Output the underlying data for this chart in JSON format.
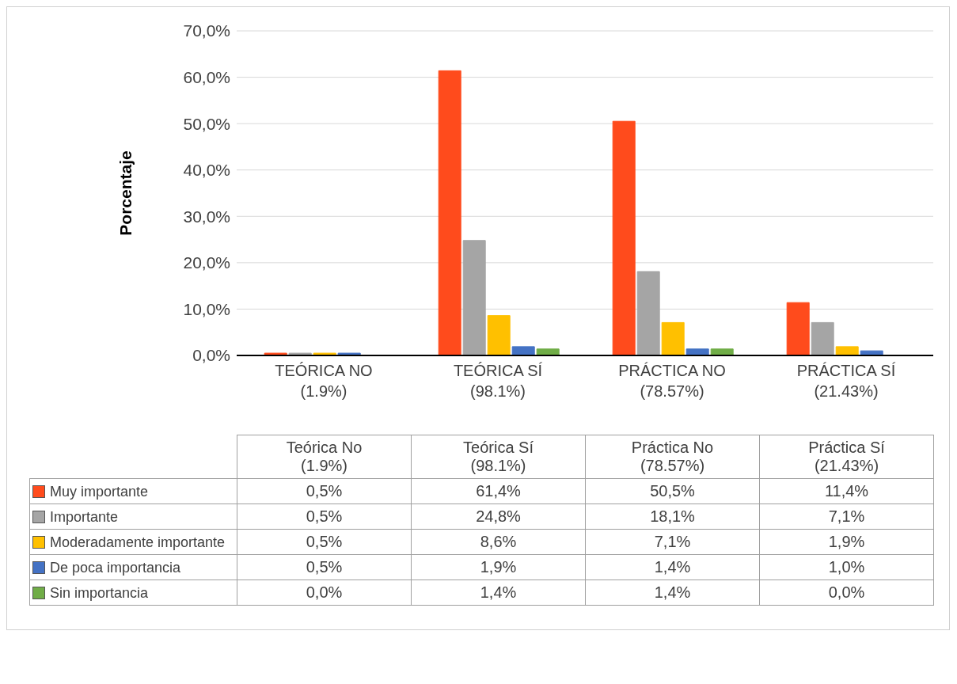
{
  "chart_data": {
    "type": "bar",
    "categories": [
      "TEÓRICA NO\n(1.9%)",
      "TEÓRICA SÍ\n(98.1%)",
      "PRÁCTICA NO\n(78.57%)",
      "PRÁCTICA SÍ\n(21.43%)"
    ],
    "series": [
      {
        "name": "Muy importante",
        "color": "#ff4b1c",
        "values": [
          0.5,
          61.4,
          50.5,
          11.4
        ],
        "value_labels": [
          "0,5%",
          "61,4%",
          "50,5%",
          "11,4%"
        ]
      },
      {
        "name": "Importante",
        "color": "#a5a5a5",
        "values": [
          0.5,
          24.8,
          18.1,
          7.1
        ],
        "value_labels": [
          "0,5%",
          "24,8%",
          "18,1%",
          "7,1%"
        ]
      },
      {
        "name": "Moderadamente importante",
        "color": "#ffc000",
        "values": [
          0.5,
          8.6,
          7.1,
          1.9
        ],
        "value_labels": [
          "0,5%",
          "8,6%",
          "7,1%",
          "1,9%"
        ]
      },
      {
        "name": "De poca importancia",
        "color": "#4472c4",
        "values": [
          0.5,
          1.9,
          1.4,
          1.0
        ],
        "value_labels": [
          "0,5%",
          "1,9%",
          "1,4%",
          "1,0%"
        ]
      },
      {
        "name": "Sin importancia",
        "color": "#70ad47",
        "values": [
          0.0,
          1.4,
          1.4,
          0.0
        ],
        "value_labels": [
          "0,0%",
          "1,4%",
          "1,4%",
          "0,0%"
        ]
      }
    ],
    "ylabel": "Porcentaje",
    "ylim": [
      0,
      70
    ],
    "yticks": [
      {
        "value": 0,
        "label": "0,0%"
      },
      {
        "value": 10,
        "label": "10,0%"
      },
      {
        "value": 20,
        "label": "20,0%"
      },
      {
        "value": 30,
        "label": "30,0%"
      },
      {
        "value": 40,
        "label": "40,0%"
      },
      {
        "value": 50,
        "label": "50,0%"
      },
      {
        "value": 60,
        "label": "60,0%"
      },
      {
        "value": 70,
        "label": "70,0%"
      }
    ],
    "grid": "y",
    "legend": "bottom",
    "annotations": [
      "Teórica No\n(1.9%)",
      "Teórica Sí\n(98.1%)",
      "Práctica No\n(78.57%)",
      "Práctica Sí\n(21.43%)"
    ]
  }
}
